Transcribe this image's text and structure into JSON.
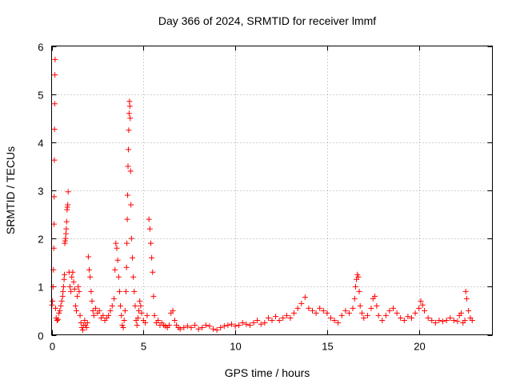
{
  "chart_data": {
    "type": "scatter",
    "title": "Day 366 of 2024, SRMTID for receiver lmmf",
    "xlabel": "GPS time / hours",
    "ylabel": "SRMTID / TECUs",
    "xlim": [
      0,
      24
    ],
    "ylim": [
      0,
      6
    ],
    "xticks": [
      0,
      5,
      10,
      15,
      20
    ],
    "yticks": [
      0,
      1,
      2,
      3,
      4,
      5,
      6
    ],
    "grid": true,
    "marker": "+",
    "color": "#ff0000",
    "series": [
      {
        "name": "SRMTID",
        "points": [
          [
            0.02,
            0.62
          ],
          [
            0.05,
            0.7
          ],
          [
            0.08,
            1.0
          ],
          [
            0.1,
            1.35
          ],
          [
            0.12,
            1.8
          ],
          [
            0.13,
            2.3
          ],
          [
            0.14,
            2.87
          ],
          [
            0.15,
            3.63
          ],
          [
            0.16,
            4.27
          ],
          [
            0.17,
            4.8
          ],
          [
            0.18,
            5.4
          ],
          [
            0.19,
            5.72
          ],
          [
            0.22,
            0.55
          ],
          [
            0.25,
            0.35
          ],
          [
            0.3,
            0.3
          ],
          [
            0.35,
            0.32
          ],
          [
            0.4,
            0.45
          ],
          [
            0.45,
            0.5
          ],
          [
            0.5,
            0.6
          ],
          [
            0.55,
            0.7
          ],
          [
            0.6,
            0.8
          ],
          [
            0.62,
            0.9
          ],
          [
            0.65,
            1.0
          ],
          [
            0.68,
            1.15
          ],
          [
            0.7,
            1.25
          ],
          [
            0.72,
            1.9
          ],
          [
            0.74,
            1.95
          ],
          [
            0.76,
            2.0
          ],
          [
            0.78,
            2.1
          ],
          [
            0.8,
            2.2
          ],
          [
            0.82,
            2.35
          ],
          [
            0.84,
            2.6
          ],
          [
            0.86,
            2.65
          ],
          [
            0.88,
            2.7
          ],
          [
            0.9,
            2.97
          ],
          [
            0.95,
            1.3
          ],
          [
            1.0,
            1.0
          ],
          [
            1.05,
            0.9
          ],
          [
            1.1,
            1.2
          ],
          [
            1.15,
            1.3
          ],
          [
            1.2,
            1.1
          ],
          [
            1.25,
            0.95
          ],
          [
            1.3,
            0.6
          ],
          [
            1.35,
            0.5
          ],
          [
            1.4,
            0.8
          ],
          [
            1.45,
            1.0
          ],
          [
            1.5,
            0.9
          ],
          [
            1.55,
            0.4
          ],
          [
            1.6,
            0.25
          ],
          [
            1.65,
            0.15
          ],
          [
            1.7,
            0.1
          ],
          [
            1.75,
            0.2
          ],
          [
            1.8,
            0.3
          ],
          [
            1.85,
            0.2
          ],
          [
            1.9,
            0.15
          ],
          [
            1.95,
            0.25
          ],
          [
            2.0,
            1.62
          ],
          [
            2.05,
            1.35
          ],
          [
            2.1,
            1.2
          ],
          [
            2.15,
            0.9
          ],
          [
            2.2,
            0.7
          ],
          [
            2.25,
            0.5
          ],
          [
            2.3,
            0.4
          ],
          [
            2.4,
            0.55
          ],
          [
            2.5,
            0.45
          ],
          [
            2.6,
            0.5
          ],
          [
            2.7,
            0.35
          ],
          [
            2.8,
            0.4
          ],
          [
            2.9,
            0.3
          ],
          [
            3.0,
            0.35
          ],
          [
            3.1,
            0.4
          ],
          [
            3.2,
            0.5
          ],
          [
            3.3,
            0.6
          ],
          [
            3.4,
            0.75
          ],
          [
            3.45,
            1.35
          ],
          [
            3.5,
            1.9
          ],
          [
            3.55,
            1.8
          ],
          [
            3.6,
            1.55
          ],
          [
            3.65,
            1.2
          ],
          [
            3.7,
            0.9
          ],
          [
            3.75,
            0.6
          ],
          [
            3.8,
            0.4
          ],
          [
            3.85,
            0.2
          ],
          [
            3.9,
            0.15
          ],
          [
            3.95,
            0.3
          ],
          [
            4.0,
            0.5
          ],
          [
            4.05,
            0.9
          ],
          [
            4.08,
            1.4
          ],
          [
            4.1,
            1.9
          ],
          [
            4.12,
            2.4
          ],
          [
            4.14,
            2.9
          ],
          [
            4.16,
            3.5
          ],
          [
            4.18,
            3.85
          ],
          [
            4.2,
            4.25
          ],
          [
            4.22,
            4.6
          ],
          [
            4.24,
            4.85
          ],
          [
            4.26,
            4.75
          ],
          [
            4.28,
            4.5
          ],
          [
            4.3,
            3.4
          ],
          [
            4.32,
            2.7
          ],
          [
            4.35,
            2.0
          ],
          [
            4.4,
            1.6
          ],
          [
            4.45,
            1.2
          ],
          [
            4.5,
            0.9
          ],
          [
            4.55,
            0.6
          ],
          [
            4.6,
            0.3
          ],
          [
            4.65,
            0.2
          ],
          [
            4.7,
            0.35
          ],
          [
            4.75,
            0.5
          ],
          [
            4.8,
            0.7
          ],
          [
            4.85,
            0.6
          ],
          [
            4.9,
            0.45
          ],
          [
            5.0,
            0.3
          ],
          [
            5.1,
            0.25
          ],
          [
            5.2,
            0.4
          ],
          [
            5.3,
            2.4
          ],
          [
            5.35,
            2.2
          ],
          [
            5.4,
            1.9
          ],
          [
            5.45,
            1.6
          ],
          [
            5.5,
            1.3
          ],
          [
            5.55,
            0.8
          ],
          [
            5.6,
            0.4
          ],
          [
            5.7,
            0.25
          ],
          [
            5.8,
            0.3
          ],
          [
            5.9,
            0.2
          ],
          [
            6.0,
            0.25
          ],
          [
            6.1,
            0.2
          ],
          [
            6.2,
            0.18
          ],
          [
            6.3,
            0.15
          ],
          [
            6.4,
            0.2
          ],
          [
            6.5,
            0.45
          ],
          [
            6.6,
            0.5
          ],
          [
            6.7,
            0.3
          ],
          [
            6.8,
            0.2
          ],
          [
            6.9,
            0.15
          ],
          [
            7.0,
            0.12
          ],
          [
            7.2,
            0.15
          ],
          [
            7.4,
            0.18
          ],
          [
            7.6,
            0.15
          ],
          [
            7.8,
            0.2
          ],
          [
            8.0,
            0.12
          ],
          [
            8.2,
            0.15
          ],
          [
            8.4,
            0.2
          ],
          [
            8.6,
            0.18
          ],
          [
            8.8,
            0.12
          ],
          [
            9.0,
            0.1
          ],
          [
            9.2,
            0.15
          ],
          [
            9.4,
            0.18
          ],
          [
            9.6,
            0.2
          ],
          [
            9.8,
            0.22
          ],
          [
            10.0,
            0.18
          ],
          [
            10.2,
            0.2
          ],
          [
            10.4,
            0.25
          ],
          [
            10.6,
            0.22
          ],
          [
            10.8,
            0.2
          ],
          [
            11.0,
            0.25
          ],
          [
            11.2,
            0.3
          ],
          [
            11.4,
            0.22
          ],
          [
            11.6,
            0.25
          ],
          [
            11.8,
            0.35
          ],
          [
            12.0,
            0.3
          ],
          [
            12.2,
            0.38
          ],
          [
            12.4,
            0.3
          ],
          [
            12.6,
            0.35
          ],
          [
            12.8,
            0.4
          ],
          [
            13.0,
            0.35
          ],
          [
            13.2,
            0.45
          ],
          [
            13.4,
            0.55
          ],
          [
            13.6,
            0.65
          ],
          [
            13.8,
            0.78
          ],
          [
            14.0,
            0.55
          ],
          [
            14.2,
            0.5
          ],
          [
            14.4,
            0.45
          ],
          [
            14.6,
            0.55
          ],
          [
            14.8,
            0.5
          ],
          [
            15.0,
            0.45
          ],
          [
            15.2,
            0.35
          ],
          [
            15.4,
            0.3
          ],
          [
            15.6,
            0.25
          ],
          [
            15.8,
            0.4
          ],
          [
            16.0,
            0.5
          ],
          [
            16.2,
            0.45
          ],
          [
            16.4,
            0.55
          ],
          [
            16.5,
            0.75
          ],
          [
            16.55,
            1.0
          ],
          [
            16.6,
            1.15
          ],
          [
            16.65,
            1.25
          ],
          [
            16.7,
            1.2
          ],
          [
            16.75,
            0.9
          ],
          [
            16.8,
            0.6
          ],
          [
            16.9,
            0.45
          ],
          [
            17.0,
            0.35
          ],
          [
            17.2,
            0.4
          ],
          [
            17.4,
            0.55
          ],
          [
            17.5,
            0.75
          ],
          [
            17.6,
            0.8
          ],
          [
            17.7,
            0.6
          ],
          [
            17.8,
            0.4
          ],
          [
            18.0,
            0.3
          ],
          [
            18.2,
            0.4
          ],
          [
            18.4,
            0.5
          ],
          [
            18.6,
            0.55
          ],
          [
            18.8,
            0.45
          ],
          [
            19.0,
            0.35
          ],
          [
            19.2,
            0.3
          ],
          [
            19.4,
            0.38
          ],
          [
            19.6,
            0.35
          ],
          [
            19.8,
            0.45
          ],
          [
            20.0,
            0.55
          ],
          [
            20.1,
            0.7
          ],
          [
            20.2,
            0.62
          ],
          [
            20.3,
            0.5
          ],
          [
            20.5,
            0.35
          ],
          [
            20.7,
            0.3
          ],
          [
            20.9,
            0.25
          ],
          [
            21.1,
            0.3
          ],
          [
            21.3,
            0.28
          ],
          [
            21.5,
            0.3
          ],
          [
            21.7,
            0.35
          ],
          [
            21.9,
            0.3
          ],
          [
            22.1,
            0.28
          ],
          [
            22.2,
            0.4
          ],
          [
            22.3,
            0.45
          ],
          [
            22.4,
            0.25
          ],
          [
            22.5,
            0.3
          ],
          [
            22.55,
            0.9
          ],
          [
            22.6,
            0.75
          ],
          [
            22.7,
            0.5
          ],
          [
            22.8,
            0.35
          ],
          [
            22.9,
            0.3
          ]
        ]
      }
    ]
  }
}
